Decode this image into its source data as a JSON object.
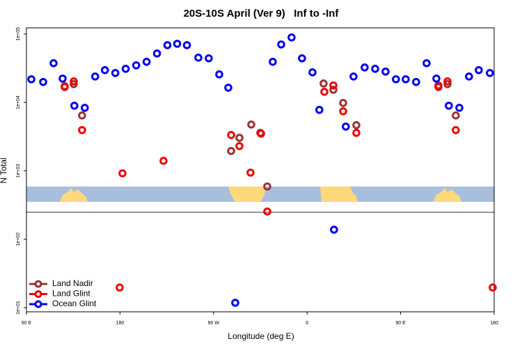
{
  "chart_data": {
    "type": "scatter",
    "title": "20S-10S April (Ver 9)   Inf to -Inf",
    "xlabel": "Longitude (deg E)",
    "ylabel": "N Total",
    "log_y": true,
    "legend": "lower left",
    "xlim": [
      90,
      540
    ],
    "xticks": [
      {
        "value": 90,
        "label": "90 E"
      },
      180,
      {
        "value": 270,
        "label": "90 W"
      },
      {
        "value": 360,
        "label": "0"
      },
      {
        "value": 450,
        "label": "90 E"
      },
      {
        "value": 540,
        "label": "180"
      }
    ],
    "ylim": [
      8.7,
      123000
    ],
    "yticks": [
      {
        "value": 10,
        "label": "1e+01"
      },
      {
        "value": 100,
        "label": "1e+02"
      },
      {
        "value": 1000,
        "label": "1e+03"
      },
      {
        "value": 10000,
        "label": "1e+04"
      },
      {
        "value": 100000,
        "label": "1e+05"
      }
    ],
    "series": [
      {
        "name": "Land Nadir",
        "color": "#993333",
        "x": [
          126.8,
          135.5,
          143.5,
          286.9,
          294.9,
          306.3,
          315.0,
          321.7,
          375.9,
          385.3,
          394.7,
          407.4,
          486.4,
          495.1,
          503.1
        ],
        "values": [
          17300,
          18500,
          6440,
          1950,
          3040,
          4750,
          3590,
          590,
          18900,
          15300,
          9820,
          4650,
          17700,
          18500,
          6440
        ]
      },
      {
        "name": "Land Glint",
        "color": "#ee0000",
        "x": [
          126.8,
          135.5,
          143.5,
          182.4,
          221.9,
          286.9,
          294.9,
          305.6,
          315.7,
          321.7,
          376.6,
          385.3,
          394.7,
          407.4,
          486.4,
          495.1,
          503.1,
          179.7,
          538.6
        ],
        "values": [
          16800,
          20300,
          3940,
          920,
          1400,
          3340,
          2300,
          942,
          3500,
          254,
          14300,
          17700,
          7420,
          3590,
          16800,
          20300,
          3940,
          19.7,
          19.7
        ]
      },
      {
        "name": "Ocean Glint",
        "color": "#0000ee",
        "x": [
          94.7,
          106.1,
          116.1,
          124.8,
          136.1,
          146.1,
          156.1,
          165.5,
          175.5,
          185.5,
          195.6,
          205.6,
          215.6,
          225.6,
          235.0,
          244.4,
          255.4,
          265.4,
          275.5,
          284.2,
          290.9,
          327.0,
          335.1,
          345.1,
          355.1,
          365.2,
          371.8,
          385.9,
          397.3,
          404.7,
          415.4,
          425.5,
          435.5,
          445.5,
          454.9,
          464.9,
          475.0,
          484.4,
          496.4,
          506.5,
          515.8,
          525.2,
          535.9
        ],
        "values": [
          21800,
          19900,
          37400,
          22300,
          8950,
          8340,
          23900,
          29600,
          26900,
          31000,
          34800,
          39200,
          51900,
          68700,
          72000,
          68700,
          45100,
          44100,
          25700,
          16400,
          11.8,
          39200,
          70300,
          89000,
          44100,
          27500,
          7780,
          138,
          4430,
          23900,
          32400,
          31000,
          28200,
          21800,
          21800,
          19900,
          37400,
          22300,
          8950,
          8340,
          23900,
          29600,
          26900
        ]
      }
    ]
  }
}
